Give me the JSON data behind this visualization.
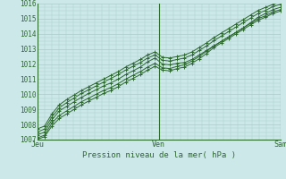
{
  "title": "Pression niveau de la mer( hPa )",
  "bg_color": "#cce8e8",
  "grid_color": "#aacccc",
  "line_color": "#2d6a2d",
  "marker_color": "#2d6a2d",
  "ylim": [
    1007,
    1016
  ],
  "yticks": [
    1007,
    1008,
    1009,
    1010,
    1011,
    1012,
    1013,
    1014,
    1015,
    1016
  ],
  "xtick_labels": [
    "Jeu",
    "Ven",
    "Sam"
  ],
  "xtick_positions": [
    0.0,
    0.5,
    1.0
  ],
  "vlines": [
    0.0,
    0.5,
    1.0
  ],
  "series": [
    [
      1007.3,
      1007.5,
      1008.3,
      1008.9,
      1009.2,
      1009.5,
      1009.8,
      1010.05,
      1010.3,
      1010.55,
      1010.75,
      1011.0,
      1011.3,
      1011.55,
      1011.8,
      1012.15,
      1012.4,
      1012.0,
      1011.95,
      1012.05,
      1012.1,
      1012.3,
      1012.6,
      1012.9,
      1013.2,
      1013.5,
      1013.8,
      1014.1,
      1014.4,
      1014.75,
      1015.1,
      1015.35,
      1015.6,
      1015.75
    ],
    [
      1007.5,
      1007.7,
      1008.5,
      1009.1,
      1009.45,
      1009.75,
      1010.05,
      1010.3,
      1010.55,
      1010.8,
      1011.05,
      1011.3,
      1011.6,
      1011.85,
      1012.1,
      1012.4,
      1012.6,
      1012.25,
      1012.2,
      1012.3,
      1012.4,
      1012.6,
      1012.9,
      1013.2,
      1013.55,
      1013.85,
      1014.15,
      1014.45,
      1014.75,
      1015.05,
      1015.35,
      1015.55,
      1015.8,
      1015.95
    ],
    [
      1007.1,
      1007.3,
      1008.1,
      1008.6,
      1008.9,
      1009.2,
      1009.5,
      1009.75,
      1010.0,
      1010.25,
      1010.45,
      1010.7,
      1011.0,
      1011.25,
      1011.5,
      1011.8,
      1012.05,
      1011.75,
      1011.7,
      1011.85,
      1011.95,
      1012.2,
      1012.5,
      1012.85,
      1013.2,
      1013.5,
      1013.8,
      1014.1,
      1014.4,
      1014.7,
      1015.0,
      1015.2,
      1015.45,
      1015.6
    ],
    [
      1007.0,
      1007.2,
      1007.9,
      1008.4,
      1008.7,
      1009.0,
      1009.3,
      1009.55,
      1009.8,
      1010.05,
      1010.25,
      1010.5,
      1010.8,
      1011.05,
      1011.3,
      1011.6,
      1011.85,
      1011.6,
      1011.55,
      1011.7,
      1011.8,
      1012.05,
      1012.35,
      1012.7,
      1013.1,
      1013.4,
      1013.7,
      1014.0,
      1014.3,
      1014.6,
      1014.9,
      1015.1,
      1015.35,
      1015.5
    ],
    [
      1007.7,
      1007.9,
      1008.7,
      1009.3,
      1009.65,
      1009.95,
      1010.25,
      1010.5,
      1010.75,
      1011.0,
      1011.25,
      1011.5,
      1011.8,
      1012.05,
      1012.3,
      1012.6,
      1012.8,
      1012.45,
      1012.4,
      1012.5,
      1012.6,
      1012.8,
      1013.1,
      1013.4,
      1013.75,
      1014.05,
      1014.35,
      1014.65,
      1014.95,
      1015.25,
      1015.55,
      1015.75,
      1015.95,
      1016.1
    ]
  ]
}
